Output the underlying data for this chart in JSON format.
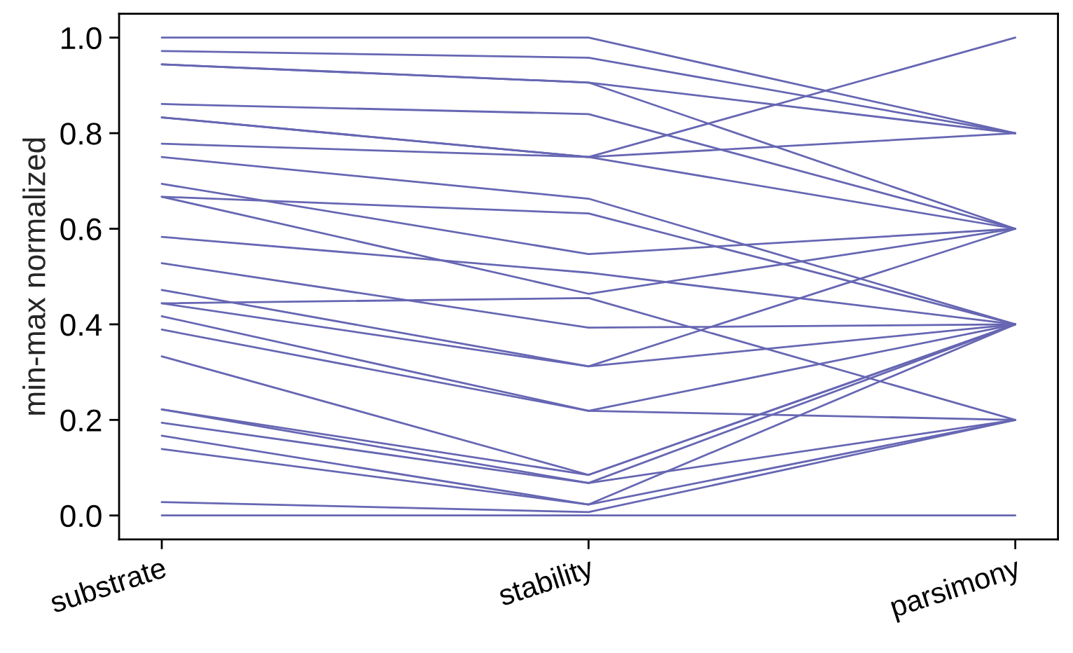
{
  "chart_data": {
    "type": "line",
    "ylabel": "min-max normalized",
    "categories": [
      "substrate",
      "stability",
      "parsimony"
    ],
    "ylim": [
      -0.05,
      1.05
    ],
    "yticks": [
      {
        "value": 0,
        "label": "0.0"
      },
      {
        "value": 0.2,
        "label": "0.2"
      },
      {
        "value": 0.4,
        "label": "0.4"
      },
      {
        "value": 0.6,
        "label": "0.6"
      },
      {
        "value": 0.8,
        "label": "0.8"
      },
      {
        "value": 1,
        "label": "1.0"
      }
    ],
    "grid": false,
    "line_style": "solid",
    "series": [
      {
        "color": "#6666b3",
        "values": [
          1.0,
          1.0,
          0.8
        ]
      },
      {
        "color": "#6666b3",
        "values": [
          0.972,
          0.958,
          0.8
        ]
      },
      {
        "color": "#6666b3",
        "values": [
          0.944,
          0.906,
          0.8
        ]
      },
      {
        "color": "#6666b3",
        "values": [
          0.944,
          0.906,
          0.6
        ]
      },
      {
        "color": "#6666b3",
        "values": [
          0.861,
          0.84,
          0.6
        ]
      },
      {
        "color": "#6666b3",
        "values": [
          0.833,
          0.75,
          1.0
        ]
      },
      {
        "color": "#6666b3",
        "values": [
          0.833,
          0.75,
          0.8
        ]
      },
      {
        "color": "#6666b3",
        "values": [
          0.778,
          0.75,
          0.6
        ]
      },
      {
        "color": "#6666b3",
        "values": [
          0.75,
          0.663,
          0.4
        ]
      },
      {
        "color": "#6666b3",
        "values": [
          0.694,
          0.547,
          0.6
        ]
      },
      {
        "color": "#6666b3",
        "values": [
          0.667,
          0.632,
          0.4
        ]
      },
      {
        "color": "#6666b3",
        "values": [
          0.667,
          0.464,
          0.6
        ]
      },
      {
        "color": "#6666b3",
        "values": [
          0.583,
          0.508,
          0.4
        ]
      },
      {
        "color": "#6666b3",
        "values": [
          0.528,
          0.393,
          0.4
        ]
      },
      {
        "color": "#6666b3",
        "values": [
          0.472,
          0.312,
          0.6
        ]
      },
      {
        "color": "#6666b3",
        "values": [
          0.444,
          0.455,
          0.2
        ]
      },
      {
        "color": "#6666b3",
        "values": [
          0.444,
          0.312,
          0.4
        ]
      },
      {
        "color": "#6666b3",
        "values": [
          0.417,
          0.219,
          0.4
        ]
      },
      {
        "color": "#6666b3",
        "values": [
          0.389,
          0.219,
          0.2
        ]
      },
      {
        "color": "#6666b3",
        "values": [
          0.333,
          0.085,
          0.4
        ]
      },
      {
        "color": "#6666b3",
        "values": [
          0.222,
          0.085,
          0.4
        ]
      },
      {
        "color": "#6666b3",
        "values": [
          0.222,
          0.068,
          0.2
        ]
      },
      {
        "color": "#6666b3",
        "values": [
          0.194,
          0.068,
          0.4
        ]
      },
      {
        "color": "#6666b3",
        "values": [
          0.167,
          0.023,
          0.4
        ]
      },
      {
        "color": "#6666b3",
        "values": [
          0.139,
          0.023,
          0.2
        ]
      },
      {
        "color": "#6666b3",
        "values": [
          0.028,
          0.007,
          0.2
        ]
      },
      {
        "color": "#6666b3",
        "values": [
          0.0,
          0.0,
          0.0
        ]
      }
    ]
  }
}
